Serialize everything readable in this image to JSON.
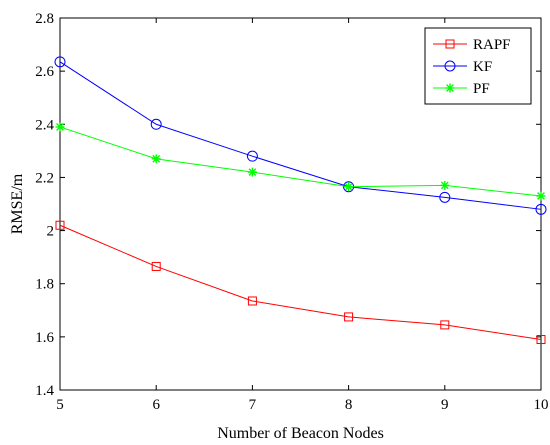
{
  "chart_data": {
    "type": "line",
    "title": "",
    "xlabel": "Number of Beacon Nodes",
    "ylabel": "RMSE/m",
    "x": [
      5,
      6,
      7,
      8,
      9,
      10
    ],
    "xlim": [
      5,
      10
    ],
    "ylim": [
      1.4,
      2.8
    ],
    "xticks": [
      "5",
      "6",
      "7",
      "8",
      "9",
      "10"
    ],
    "yticks": [
      "1.4",
      "1.6",
      "1.8",
      "2",
      "2.2",
      "2.4",
      "2.6",
      "2.8"
    ],
    "grid": false,
    "legend_position": "top-right",
    "series": [
      {
        "name": "RAPF",
        "color": "#ff0000",
        "marker": "square",
        "values": [
          2.02,
          1.865,
          1.735,
          1.675,
          1.645,
          1.59
        ]
      },
      {
        "name": "KF",
        "color": "#0000ff",
        "marker": "circle",
        "values": [
          2.635,
          2.4,
          2.28,
          2.165,
          2.125,
          2.08
        ]
      },
      {
        "name": "PF",
        "color": "#00ff00",
        "marker": "asterisk",
        "values": [
          2.39,
          2.27,
          2.22,
          2.165,
          2.17,
          2.13
        ]
      }
    ]
  }
}
